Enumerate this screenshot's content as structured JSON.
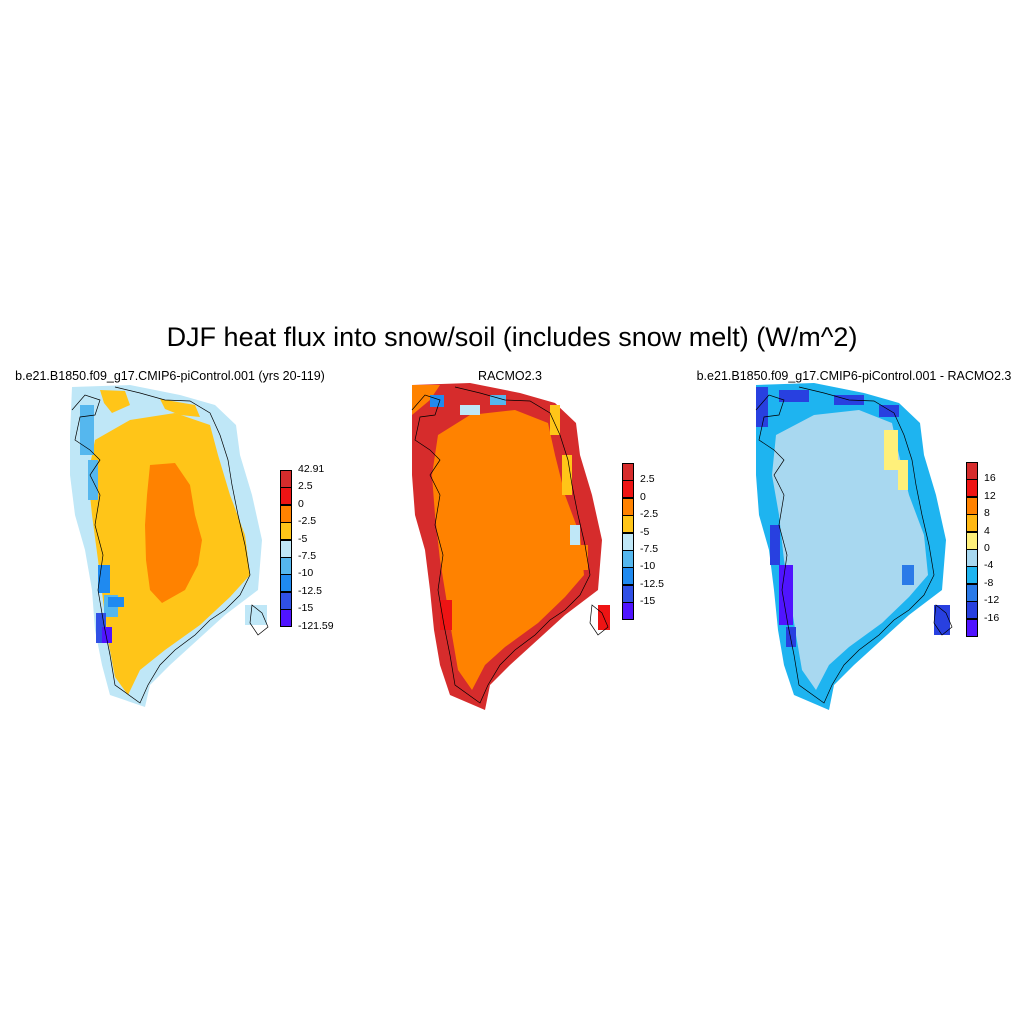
{
  "figure": {
    "title": "DJF heat flux into snow/soil (includes snow melt) (W/m^2)"
  },
  "panels": [
    {
      "title": "b.e21.B1850.f09_g17.CMIP6-piControl.001 (yrs 20-119)",
      "colorbar": {
        "labels": [
          "42.91",
          "2.5",
          "0",
          "-2.5",
          "-5",
          "-7.5",
          "-10",
          "-12.5",
          "-15",
          "-121.59"
        ],
        "colors": [
          "#d62c2c",
          "#ee1414",
          "#ff8200",
          "#ffc518",
          "#bfe7f7",
          "#55b7ee",
          "#1f8af0",
          "#3050e6",
          "#5014ff"
        ]
      }
    },
    {
      "title": "RACMO2.3",
      "colorbar": {
        "labels": [
          "2.5",
          "0",
          "-2.5",
          "-5",
          "-7.5",
          "-10",
          "-12.5",
          "-15"
        ],
        "colors": [
          "#d62c2c",
          "#ee1414",
          "#ff8200",
          "#ffc518",
          "#bfe7f7",
          "#55b7ee",
          "#1f8af0",
          "#3050e6",
          "#5014ff"
        ]
      }
    },
    {
      "title": "b.e21.B1850.f09_g17.CMIP6-piControl.001 - RACMO2.3",
      "colorbar": {
        "labels": [
          "16",
          "12",
          "8",
          "4",
          "0",
          "-4",
          "-8",
          "-12",
          "-16"
        ],
        "colors": [
          "#d62c2c",
          "#ee1414",
          "#ff8200",
          "#ffb814",
          "#fff07a",
          "#a8d8f0",
          "#1eb4f0",
          "#2a7ae8",
          "#2840e0",
          "#5014ff"
        ]
      }
    }
  ]
}
